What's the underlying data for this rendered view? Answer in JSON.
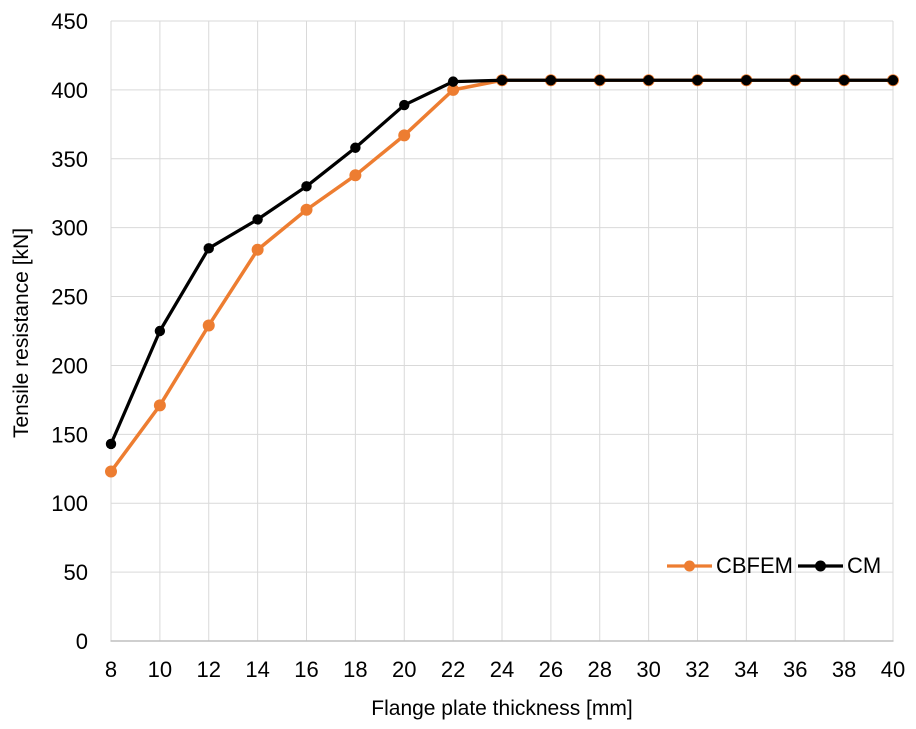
{
  "chart_data": {
    "type": "line",
    "title": "",
    "xlabel": "Flange plate thickness [mm]",
    "ylabel": "Tensile resistance [kN]",
    "x": [
      8,
      10,
      12,
      14,
      16,
      18,
      20,
      22,
      24,
      26,
      28,
      30,
      32,
      34,
      36,
      38,
      40
    ],
    "xlim": [
      8,
      40
    ],
    "ylim": [
      0,
      450
    ],
    "xtick_step": 2,
    "ytick_step": 50,
    "grid": true,
    "legend_position": "inside-bottom-right",
    "series": [
      {
        "name": "CBFEM",
        "color": "#ED7D31",
        "marker": "circle",
        "values": [
          123,
          171,
          229,
          284,
          313,
          338,
          367,
          400,
          407,
          407,
          407,
          407,
          407,
          407,
          407,
          407,
          407
        ]
      },
      {
        "name": "CM",
        "color": "#000000",
        "marker": "circle",
        "values": [
          143,
          225,
          285,
          306,
          330,
          358,
          389,
          406,
          407,
          407,
          407,
          407,
          407,
          407,
          407,
          407,
          407
        ]
      }
    ],
    "colors": {
      "gridline": "#D9D9D9",
      "axis_line": "#BFBFBF",
      "text": "#000000",
      "background": "#FFFFFF"
    }
  }
}
